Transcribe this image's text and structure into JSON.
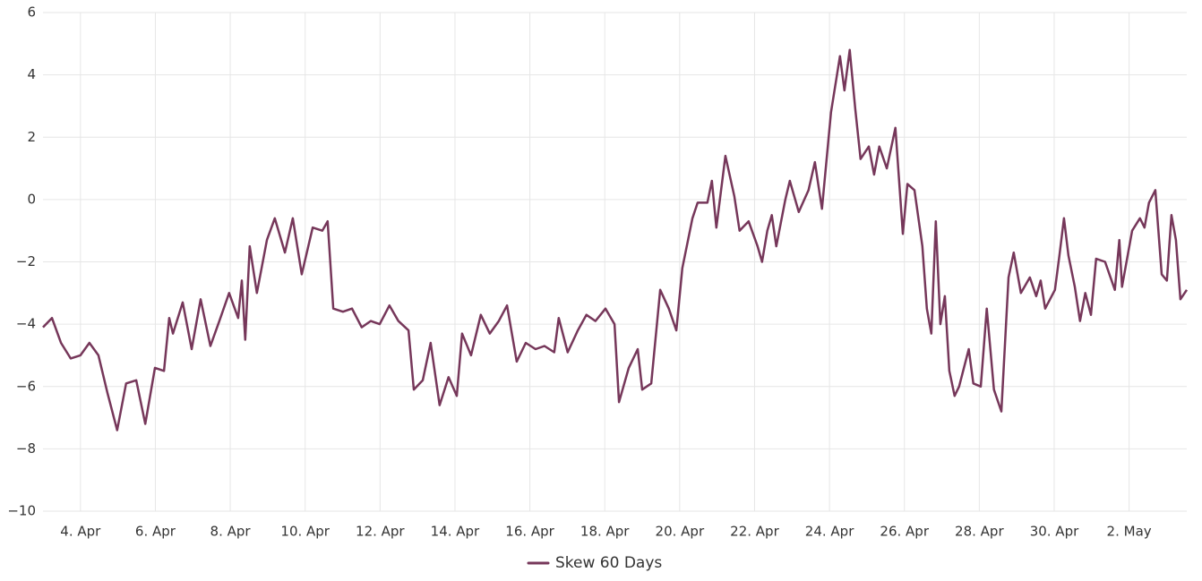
{
  "chart_data": {
    "type": "line",
    "series": [
      {
        "name": "Skew 60 Days",
        "color": "#76375a",
        "x": [
          3.0,
          3.24,
          3.48,
          3.74,
          4.0,
          4.24,
          4.48,
          4.72,
          4.98,
          5.22,
          5.49,
          5.73,
          5.99,
          6.23,
          6.37,
          6.47,
          6.73,
          6.97,
          7.21,
          7.47,
          7.71,
          7.97,
          8.21,
          8.31,
          8.4,
          8.52,
          8.71,
          8.98,
          9.19,
          9.46,
          9.67,
          9.91,
          10.2,
          10.46,
          10.6,
          10.75,
          11.01,
          11.25,
          11.51,
          11.75,
          11.99,
          12.25,
          12.49,
          12.76,
          12.9,
          13.14,
          13.35,
          13.59,
          13.83,
          14.05,
          14.19,
          14.43,
          14.69,
          14.93,
          15.17,
          15.39,
          15.65,
          15.89,
          16.15,
          16.39,
          16.65,
          16.77,
          17.01,
          17.28,
          17.51,
          17.75,
          18.02,
          18.26,
          18.38,
          18.64,
          18.88,
          19.0,
          19.24,
          19.48,
          19.71,
          19.91,
          20.07,
          20.34,
          20.48,
          20.74,
          20.86,
          20.98,
          21.22,
          21.46,
          21.6,
          21.84,
          22.08,
          22.2,
          22.34,
          22.46,
          22.58,
          22.82,
          22.94,
          23.18,
          23.44,
          23.61,
          23.8,
          24.04,
          24.28,
          24.4,
          24.54,
          24.69,
          24.83,
          25.05,
          25.19,
          25.33,
          25.53,
          25.76,
          25.96,
          26.08,
          26.27,
          26.48,
          26.6,
          26.72,
          26.84,
          26.96,
          27.08,
          27.2,
          27.34,
          27.46,
          27.72,
          27.84,
          28.04,
          28.2,
          28.39,
          28.59,
          28.78,
          28.92,
          29.11,
          29.35,
          29.52,
          29.64,
          29.76,
          30.02,
          30.14,
          30.26,
          30.38,
          30.55,
          30.69,
          30.83,
          30.98,
          31.12,
          31.36,
          31.62,
          31.74,
          31.81,
          32.08,
          32.29,
          32.41,
          32.53,
          32.7,
          32.87,
          33.01,
          33.13,
          33.25,
          33.37,
          33.54
        ],
        "values": [
          -4.1,
          -3.8,
          -4.6,
          -5.1,
          -5.0,
          -4.6,
          -5.0,
          -6.2,
          -7.4,
          -5.9,
          -5.8,
          -7.2,
          -5.4,
          -5.5,
          -3.8,
          -4.3,
          -3.3,
          -4.8,
          -3.2,
          -4.7,
          -3.9,
          -3.0,
          -3.8,
          -2.6,
          -4.5,
          -1.5,
          -3.0,
          -1.3,
          -0.6,
          -1.7,
          -0.6,
          -2.4,
          -0.9,
          -1.0,
          -0.7,
          -3.5,
          -3.6,
          -3.5,
          -4.1,
          -3.9,
          -4.0,
          -3.4,
          -3.9,
          -4.2,
          -6.1,
          -5.8,
          -4.6,
          -6.6,
          -5.7,
          -6.3,
          -4.3,
          -5.0,
          -3.7,
          -4.3,
          -3.9,
          -3.4,
          -5.2,
          -4.6,
          -4.8,
          -4.7,
          -4.9,
          -3.8,
          -4.9,
          -4.2,
          -3.7,
          -3.9,
          -3.5,
          -4.0,
          -6.5,
          -5.4,
          -4.8,
          -6.1,
          -5.9,
          -2.9,
          -3.5,
          -4.2,
          -2.2,
          -0.6,
          -0.1,
          -0.1,
          0.6,
          -0.9,
          1.4,
          0.1,
          -1.0,
          -0.7,
          -1.5,
          -2.0,
          -1.0,
          -0.5,
          -1.5,
          0.0,
          0.6,
          -0.4,
          0.3,
          1.2,
          -0.3,
          2.8,
          4.6,
          3.5,
          4.8,
          2.9,
          1.3,
          1.7,
          0.8,
          1.7,
          1.0,
          2.3,
          -1.1,
          0.5,
          0.3,
          -1.5,
          -3.5,
          -4.3,
          -0.7,
          -4.0,
          -3.1,
          -5.5,
          -6.3,
          -6.0,
          -4.8,
          -5.9,
          -6.0,
          -3.5,
          -6.1,
          -6.8,
          -2.5,
          -1.7,
          -3.0,
          -2.5,
          -3.1,
          -2.6,
          -3.5,
          -2.9,
          -1.8,
          -0.6,
          -1.8,
          -2.8,
          -3.9,
          -3.0,
          -3.7,
          -1.9,
          -2.0,
          -2.9,
          -1.3,
          -2.8,
          -1.0,
          -0.6,
          -0.9,
          -0.1,
          0.3,
          -2.4,
          -2.6,
          -0.5,
          -1.3,
          -3.2,
          -2.9
        ]
      }
    ],
    "xlim": [
      3.0,
      33.54
    ],
    "xticks": [
      {
        "value": 4,
        "label": "4. Apr"
      },
      {
        "value": 6,
        "label": "6. Apr"
      },
      {
        "value": 8,
        "label": "8. Apr"
      },
      {
        "value": 10,
        "label": "10. Apr"
      },
      {
        "value": 12,
        "label": "12. Apr"
      },
      {
        "value": 14,
        "label": "14. Apr"
      },
      {
        "value": 16,
        "label": "16. Apr"
      },
      {
        "value": 18,
        "label": "18. Apr"
      },
      {
        "value": 20,
        "label": "20. Apr"
      },
      {
        "value": 22,
        "label": "22. Apr"
      },
      {
        "value": 24,
        "label": "24. Apr"
      },
      {
        "value": 26,
        "label": "26. Apr"
      },
      {
        "value": 28,
        "label": "28. Apr"
      },
      {
        "value": 30,
        "label": "30. Apr"
      },
      {
        "value": 32,
        "label": "2. May"
      }
    ],
    "ylim": [
      -10,
      6
    ],
    "yticks": [
      {
        "value": -10,
        "label": "−10"
      },
      {
        "value": -8,
        "label": "−8"
      },
      {
        "value": -6,
        "label": "−6"
      },
      {
        "value": -4,
        "label": "−4"
      },
      {
        "value": -2,
        "label": "−2"
      },
      0,
      2,
      4,
      6
    ],
    "grid": true,
    "legend": "bottom"
  }
}
